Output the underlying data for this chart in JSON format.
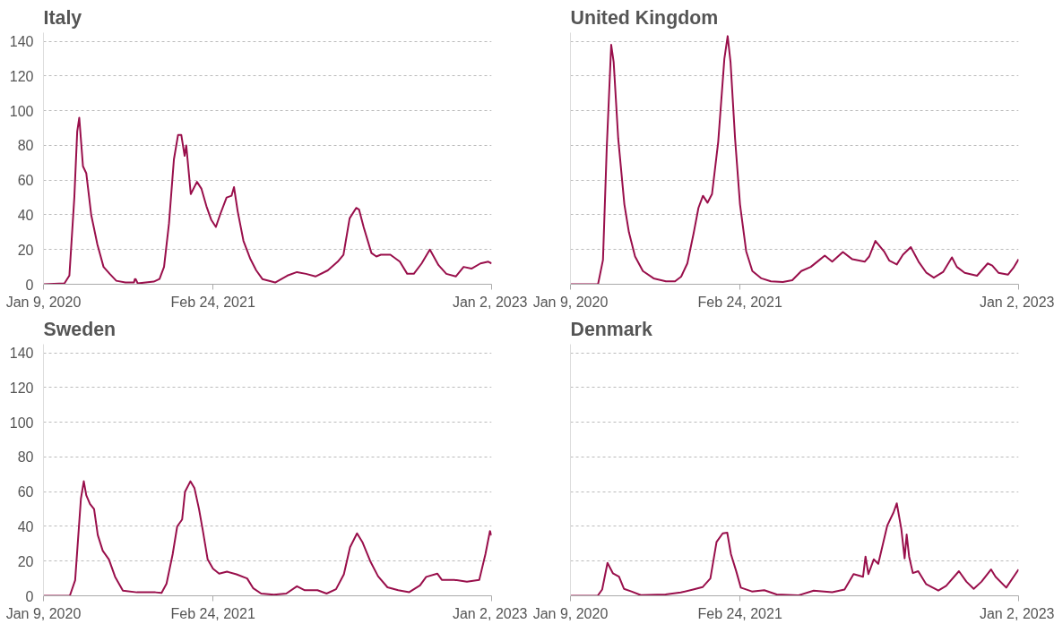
{
  "chart_data": [
    {
      "type": "line",
      "title": "Italy",
      "color": "#990f4b",
      "grid": "y",
      "xlim": [
        "2020-01-09",
        "2023-01-02"
      ],
      "ylim": [
        0,
        145
      ],
      "yticks": [
        0,
        20,
        40,
        60,
        80,
        100,
        120,
        140
      ],
      "xticks": [
        {
          "value": "2020-01-09",
          "label": "Jan 9, 2020"
        },
        {
          "value": "2021-02-24",
          "label": "Feb 24, 2021"
        },
        {
          "value": "2023-01-02",
          "label": "Jan 2, 2023"
        }
      ],
      "x": [
        "2020-01-09",
        "2020-02-29",
        "2020-03-12",
        "2020-03-24",
        "2020-03-31",
        "2020-04-05",
        "2020-04-14",
        "2020-04-22",
        "2020-05-04",
        "2020-05-19",
        "2020-06-03",
        "2020-06-18",
        "2020-07-04",
        "2020-07-26",
        "2020-08-16",
        "2020-08-18",
        "2020-08-20",
        "2020-08-25",
        "2020-10-03",
        "2020-10-17",
        "2020-10-28",
        "2020-11-09",
        "2020-11-21",
        "2020-12-01",
        "2020-12-09",
        "2020-12-17",
        "2020-12-21",
        "2021-01-01",
        "2021-01-16",
        "2021-01-27",
        "2021-02-08",
        "2021-02-20",
        "2021-03-03",
        "2021-03-13",
        "2021-03-29",
        "2021-04-10",
        "2021-04-16",
        "2021-04-25",
        "2021-05-09",
        "2021-05-25",
        "2021-06-09",
        "2021-06-24",
        "2021-07-25",
        "2021-08-24",
        "2021-09-16",
        "2021-10-08",
        "2021-10-31",
        "2021-11-30",
        "2021-12-24",
        "2022-01-07",
        "2022-01-22",
        "2022-02-07",
        "2022-02-14",
        "2022-02-25",
        "2022-03-16",
        "2022-03-28",
        "2022-04-08",
        "2022-05-01",
        "2022-05-24",
        "2022-06-11",
        "2022-06-27",
        "2022-07-16",
        "2022-08-05",
        "2022-08-26",
        "2022-09-14",
        "2022-10-07",
        "2022-10-26",
        "2022-11-14",
        "2022-12-06",
        "2022-12-25",
        "2023-01-02"
      ],
      "values": [
        0,
        0.5,
        5,
        50,
        88,
        96,
        68,
        64,
        40,
        23,
        10,
        6,
        2,
        1,
        1,
        3,
        3,
        0.5,
        1.5,
        3,
        10,
        35,
        72,
        86,
        86,
        74,
        80,
        52,
        59,
        55,
        45,
        37,
        33,
        40,
        50,
        51,
        56,
        42,
        25,
        15,
        8,
        3,
        1,
        5,
        7,
        6,
        4.5,
        8,
        13,
        17,
        38,
        44,
        43,
        33,
        18,
        16,
        17,
        17,
        13,
        6,
        6,
        12,
        20,
        11,
        6,
        4.5,
        10,
        9,
        12,
        13,
        12
      ]
    },
    {
      "type": "line",
      "title": "United Kingdom",
      "color": "#990f4b",
      "grid": "y",
      "tick_labels": "x",
      "xlim": [
        "2020-01-09",
        "2023-01-02"
      ],
      "ylim": [
        0,
        145
      ],
      "yticks": [
        0,
        20,
        40,
        60,
        80,
        100,
        120,
        140
      ],
      "xticks": [
        {
          "value": "2020-01-09",
          "label": "Jan 9, 2020"
        },
        {
          "value": "2021-02-24",
          "label": "Feb 24, 2021"
        },
        {
          "value": "2023-01-02",
          "label": "Jan 2, 2023"
        }
      ],
      "x": [
        "2020-01-09",
        "2020-03-16",
        "2020-03-28",
        "2020-04-06",
        "2020-04-17",
        "2020-04-23",
        "2020-05-04",
        "2020-05-19",
        "2020-05-30",
        "2020-06-14",
        "2020-07-03",
        "2020-07-29",
        "2020-08-28",
        "2020-09-19",
        "2020-10-04",
        "2020-10-19",
        "2020-11-03",
        "2020-11-15",
        "2020-11-26",
        "2020-12-07",
        "2020-12-18",
        "2021-01-02",
        "2021-01-17",
        "2021-01-25",
        "2021-02-01",
        "2021-02-12",
        "2021-02-24",
        "2021-03-11",
        "2021-03-26",
        "2021-04-17",
        "2021-05-10",
        "2021-06-08",
        "2021-07-01",
        "2021-07-23",
        "2021-08-15",
        "2021-09-03",
        "2021-09-18",
        "2021-10-06",
        "2021-11-01",
        "2021-11-24",
        "2021-12-24",
        "2022-01-04",
        "2022-01-19",
        "2022-02-10",
        "2022-02-22",
        "2022-03-12",
        "2022-03-27",
        "2022-04-15",
        "2022-05-04",
        "2022-05-23",
        "2022-06-10",
        "2022-07-03",
        "2022-07-24",
        "2022-08-05",
        "2022-08-24",
        "2022-09-23",
        "2022-10-19",
        "2022-10-30",
        "2022-11-14",
        "2022-12-07",
        "2022-12-20",
        "2023-01-02"
      ],
      "values": [
        0,
        0,
        14,
        77.5,
        138,
        128,
        84,
        46,
        30,
        16,
        7.6,
        3.4,
        1.7,
        1.7,
        4.4,
        12,
        29,
        44,
        51,
        47,
        52,
        82,
        130,
        143,
        128,
        84,
        46,
        19,
        7.6,
        3.4,
        1.7,
        1.3,
        2.3,
        7.6,
        10,
        13.6,
        16.5,
        13,
        18.6,
        14.4,
        13,
        16,
        25,
        18.6,
        13.6,
        11.4,
        17,
        21.4,
        13,
        6.6,
        3.8,
        7.2,
        15.5,
        10,
        6.6,
        4.9,
        12,
        10.8,
        6.6,
        5.5,
        9.3,
        14.4
      ]
    },
    {
      "type": "line",
      "title": "Sweden",
      "color": "#990f4b",
      "grid": "y",
      "xlim": [
        "2020-01-09",
        "2023-01-02"
      ],
      "ylim": [
        0,
        145
      ],
      "yticks": [
        0,
        20,
        40,
        60,
        80,
        100,
        120,
        140
      ],
      "xticks": [
        {
          "value": "2020-01-09",
          "label": "Jan 9, 2020"
        },
        {
          "value": "2021-02-24",
          "label": "Feb 24, 2021"
        },
        {
          "value": "2023-01-02",
          "label": "Jan 2, 2023"
        }
      ],
      "x": [
        "2020-01-09",
        "2020-03-13",
        "2020-03-26",
        "2020-04-09",
        "2020-04-16",
        "2020-04-22",
        "2020-05-01",
        "2020-05-11",
        "2020-05-20",
        "2020-06-01",
        "2020-06-16",
        "2020-07-01",
        "2020-07-20",
        "2020-08-23",
        "2020-10-07",
        "2020-10-22",
        "2020-11-03",
        "2020-11-18",
        "2020-11-29",
        "2020-12-11",
        "2020-12-18",
        "2020-12-31",
        "2021-01-10",
        "2021-01-21",
        "2021-01-30",
        "2021-02-11",
        "2021-02-24",
        "2021-03-11",
        "2021-03-30",
        "2021-04-22",
        "2021-05-18",
        "2021-06-02",
        "2021-06-21",
        "2021-07-22",
        "2021-08-21",
        "2021-09-16",
        "2021-10-05",
        "2021-11-05",
        "2021-11-27",
        "2021-12-20",
        "2022-01-08",
        "2022-01-23",
        "2022-02-09",
        "2022-02-22",
        "2022-03-13",
        "2022-04-01",
        "2022-04-24",
        "2022-05-20",
        "2022-06-16",
        "2022-07-12",
        "2022-07-27",
        "2022-08-23",
        "2022-09-03",
        "2022-10-03",
        "2022-11-03",
        "2022-12-03",
        "2022-12-18",
        "2022-12-29",
        "2023-01-02"
      ],
      "values": [
        0,
        0,
        9,
        56,
        66,
        58,
        53,
        50,
        35,
        26,
        21,
        11,
        3,
        2,
        2,
        1.7,
        7,
        24,
        40,
        44,
        60,
        66,
        62,
        50,
        38,
        21,
        15.6,
        12.8,
        13.9,
        12.4,
        10,
        4.3,
        1.3,
        0.6,
        1.3,
        5.5,
        3.2,
        3.2,
        1.3,
        3.8,
        12.4,
        28,
        36,
        31,
        20,
        11.3,
        4.9,
        3.2,
        2.1,
        6,
        10.9,
        12.8,
        9.2,
        9.2,
        8.1,
        9.2,
        24,
        37.3,
        34.8
      ]
    },
    {
      "type": "line",
      "title": "Denmark",
      "color": "#990f4b",
      "grid": "y",
      "tick_labels": "x",
      "xlim": [
        "2020-01-09",
        "2023-01-02"
      ],
      "ylim": [
        0,
        145
      ],
      "yticks": [
        0,
        20,
        40,
        60,
        80,
        100,
        120,
        140
      ],
      "xticks": [
        {
          "value": "2020-01-09",
          "label": "Jan 9, 2020"
        },
        {
          "value": "2021-02-24",
          "label": "Feb 24, 2021"
        },
        {
          "value": "2023-01-02",
          "label": "Jan 2, 2023"
        }
      ],
      "x": [
        "2020-01-09",
        "2020-03-15",
        "2020-03-26",
        "2020-04-08",
        "2020-04-21",
        "2020-05-06",
        "2020-05-18",
        "2020-06-05",
        "2020-06-28",
        "2020-08-27",
        "2020-10-03",
        "2020-11-02",
        "2020-11-25",
        "2020-12-14",
        "2020-12-29",
        "2021-01-13",
        "2021-01-24",
        "2021-02-02",
        "2021-02-15",
        "2021-02-26",
        "2021-03-25",
        "2021-04-24",
        "2021-05-24",
        "2021-07-15",
        "2021-08-22",
        "2021-10-06",
        "2021-11-05",
        "2021-11-27",
        "2021-12-20",
        "2021-12-26",
        "2022-01-02",
        "2022-01-15",
        "2022-01-26",
        "2022-02-17",
        "2022-03-04",
        "2022-03-12",
        "2022-03-23",
        "2022-03-31",
        "2022-04-05",
        "2022-04-11",
        "2022-04-20",
        "2022-05-03",
        "2022-05-22",
        "2022-06-21",
        "2022-07-10",
        "2022-08-10",
        "2022-08-28",
        "2022-09-15",
        "2022-10-04",
        "2022-10-27",
        "2022-11-07",
        "2022-12-03",
        "2023-01-02"
      ],
      "values": [
        0,
        0,
        3.6,
        19,
        13,
        11,
        4,
        2.5,
        0.4,
        0.8,
        1.9,
        3.6,
        5,
        10,
        31,
        36,
        36.4,
        24,
        14,
        4.7,
        2.5,
        3.2,
        0.8,
        0.2,
        3,
        2.1,
        3.6,
        12.5,
        11,
        22.6,
        12.5,
        21,
        18.4,
        40.6,
        48,
        53.3,
        38.5,
        21.6,
        35.3,
        22.6,
        13.1,
        14.2,
        6.8,
        3,
        5.7,
        14.2,
        8.2,
        4,
        8.2,
        15.2,
        11,
        4.7,
        15.2
      ]
    }
  ]
}
